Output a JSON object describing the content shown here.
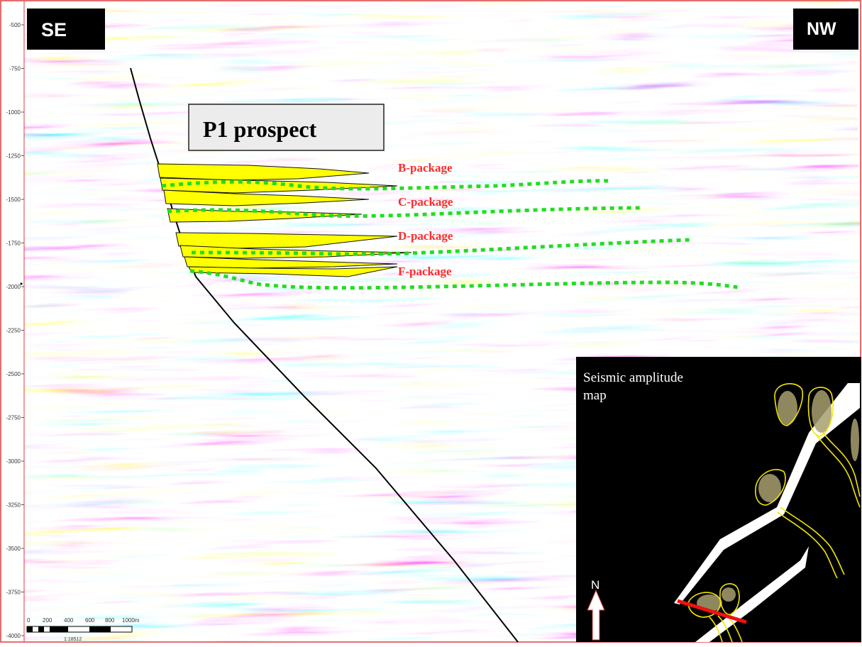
{
  "directions": {
    "left": "SE",
    "right": "NW"
  },
  "prospect_label": "P1 prospect",
  "packages": [
    {
      "label": "B-package"
    },
    {
      "label": "C-package"
    },
    {
      "label": "D-package"
    },
    {
      "label": "F-package"
    }
  ],
  "depth_axis": {
    "ticks": [
      "-500",
      "-750",
      "-1000",
      "-1250",
      "-1500",
      "-1750",
      "-2000",
      "-2250",
      "-2500",
      "-2750",
      "-3000",
      "-3250",
      "-3500",
      "-3750",
      "-4000"
    ]
  },
  "scale_bar": {
    "ticks": [
      "0",
      "200",
      "400",
      "600",
      "800",
      "1000m"
    ],
    "ratio": "1:18512"
  },
  "inset": {
    "title_line1": "Seismic amplitude",
    "title_line2": "map",
    "north_label": "N"
  },
  "colors": {
    "sand_fill": "#ffff00",
    "horizon": "#22dd22",
    "package_label": "#ff2a2a",
    "section_line": "#ee1111",
    "border": "#e23b3b",
    "inset_background": "#000000",
    "amplitude_outline": "#f2e600"
  }
}
